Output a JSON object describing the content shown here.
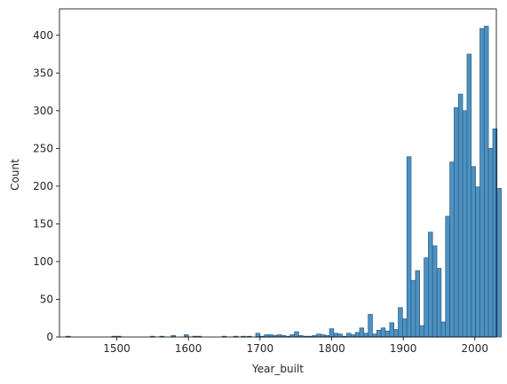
{
  "chart_data": {
    "type": "bar",
    "subtype": "histogram",
    "title": "",
    "xlabel": "Year_built",
    "ylabel": "Count",
    "xlim": [
      1420,
      2030
    ],
    "ylim": [
      0,
      435
    ],
    "xticks": [
      1500,
      1600,
      1700,
      1800,
      1900,
      2000
    ],
    "yticks": [
      0,
      50,
      100,
      150,
      200,
      250,
      300,
      350,
      400
    ],
    "grid": false,
    "legend": "none",
    "bin_width": 5.9,
    "bar_color": "#4c92c3",
    "edge_color": "#2f5c7f",
    "bins": [
      {
        "x": 1432,
        "count": 1
      },
      {
        "x": 1496,
        "count": 1
      },
      {
        "x": 1503,
        "count": 1
      },
      {
        "x": 1550,
        "count": 1
      },
      {
        "x": 1563,
        "count": 1
      },
      {
        "x": 1579,
        "count": 2
      },
      {
        "x": 1597,
        "count": 3
      },
      {
        "x": 1609,
        "count": 1
      },
      {
        "x": 1615,
        "count": 1
      },
      {
        "x": 1650,
        "count": 1
      },
      {
        "x": 1666,
        "count": 1
      },
      {
        "x": 1677,
        "count": 1
      },
      {
        "x": 1685,
        "count": 1
      },
      {
        "x": 1697,
        "count": 5
      },
      {
        "x": 1703,
        "count": 1
      },
      {
        "x": 1709,
        "count": 3
      },
      {
        "x": 1715,
        "count": 3
      },
      {
        "x": 1721,
        "count": 2
      },
      {
        "x": 1727,
        "count": 3
      },
      {
        "x": 1733,
        "count": 2
      },
      {
        "x": 1740,
        "count": 1
      },
      {
        "x": 1745,
        "count": 3
      },
      {
        "x": 1751,
        "count": 7
      },
      {
        "x": 1757,
        "count": 2
      },
      {
        "x": 1764,
        "count": 1
      },
      {
        "x": 1770,
        "count": 1
      },
      {
        "x": 1776,
        "count": 2
      },
      {
        "x": 1782,
        "count": 4
      },
      {
        "x": 1788,
        "count": 3
      },
      {
        "x": 1794,
        "count": 2
      },
      {
        "x": 1800,
        "count": 11
      },
      {
        "x": 1806,
        "count": 5
      },
      {
        "x": 1812,
        "count": 4
      },
      {
        "x": 1818,
        "count": 1
      },
      {
        "x": 1824,
        "count": 5
      },
      {
        "x": 1830,
        "count": 3
      },
      {
        "x": 1836,
        "count": 6
      },
      {
        "x": 1842,
        "count": 12
      },
      {
        "x": 1848,
        "count": 5
      },
      {
        "x": 1854,
        "count": 30
      },
      {
        "x": 1860,
        "count": 4
      },
      {
        "x": 1866,
        "count": 9
      },
      {
        "x": 1872,
        "count": 12
      },
      {
        "x": 1878,
        "count": 8
      },
      {
        "x": 1884,
        "count": 19
      },
      {
        "x": 1890,
        "count": 10
      },
      {
        "x": 1896,
        "count": 39
      },
      {
        "x": 1902,
        "count": 24
      },
      {
        "x": 1908,
        "count": 239
      },
      {
        "x": 1914,
        "count": 75
      },
      {
        "x": 1920,
        "count": 88
      },
      {
        "x": 1926,
        "count": 15
      },
      {
        "x": 1932,
        "count": 105
      },
      {
        "x": 1938,
        "count": 139
      },
      {
        "x": 1944,
        "count": 121
      },
      {
        "x": 1950,
        "count": 91
      },
      {
        "x": 1956,
        "count": 20
      },
      {
        "x": 1962,
        "count": 160
      },
      {
        "x": 1968,
        "count": 232
      },
      {
        "x": 1974,
        "count": 304
      },
      {
        "x": 1980,
        "count": 322
      },
      {
        "x": 1986,
        "count": 300
      },
      {
        "x": 1992,
        "count": 375
      },
      {
        "x": 1998,
        "count": 226
      },
      {
        "x": 2004,
        "count": 199
      },
      {
        "x": 2010,
        "count": 409
      },
      {
        "x": 2016,
        "count": 412
      },
      {
        "x": 2022,
        "count": 250
      },
      {
        "x": 2028,
        "count": 276
      },
      {
        "x": 2034,
        "count": 197
      }
    ]
  }
}
